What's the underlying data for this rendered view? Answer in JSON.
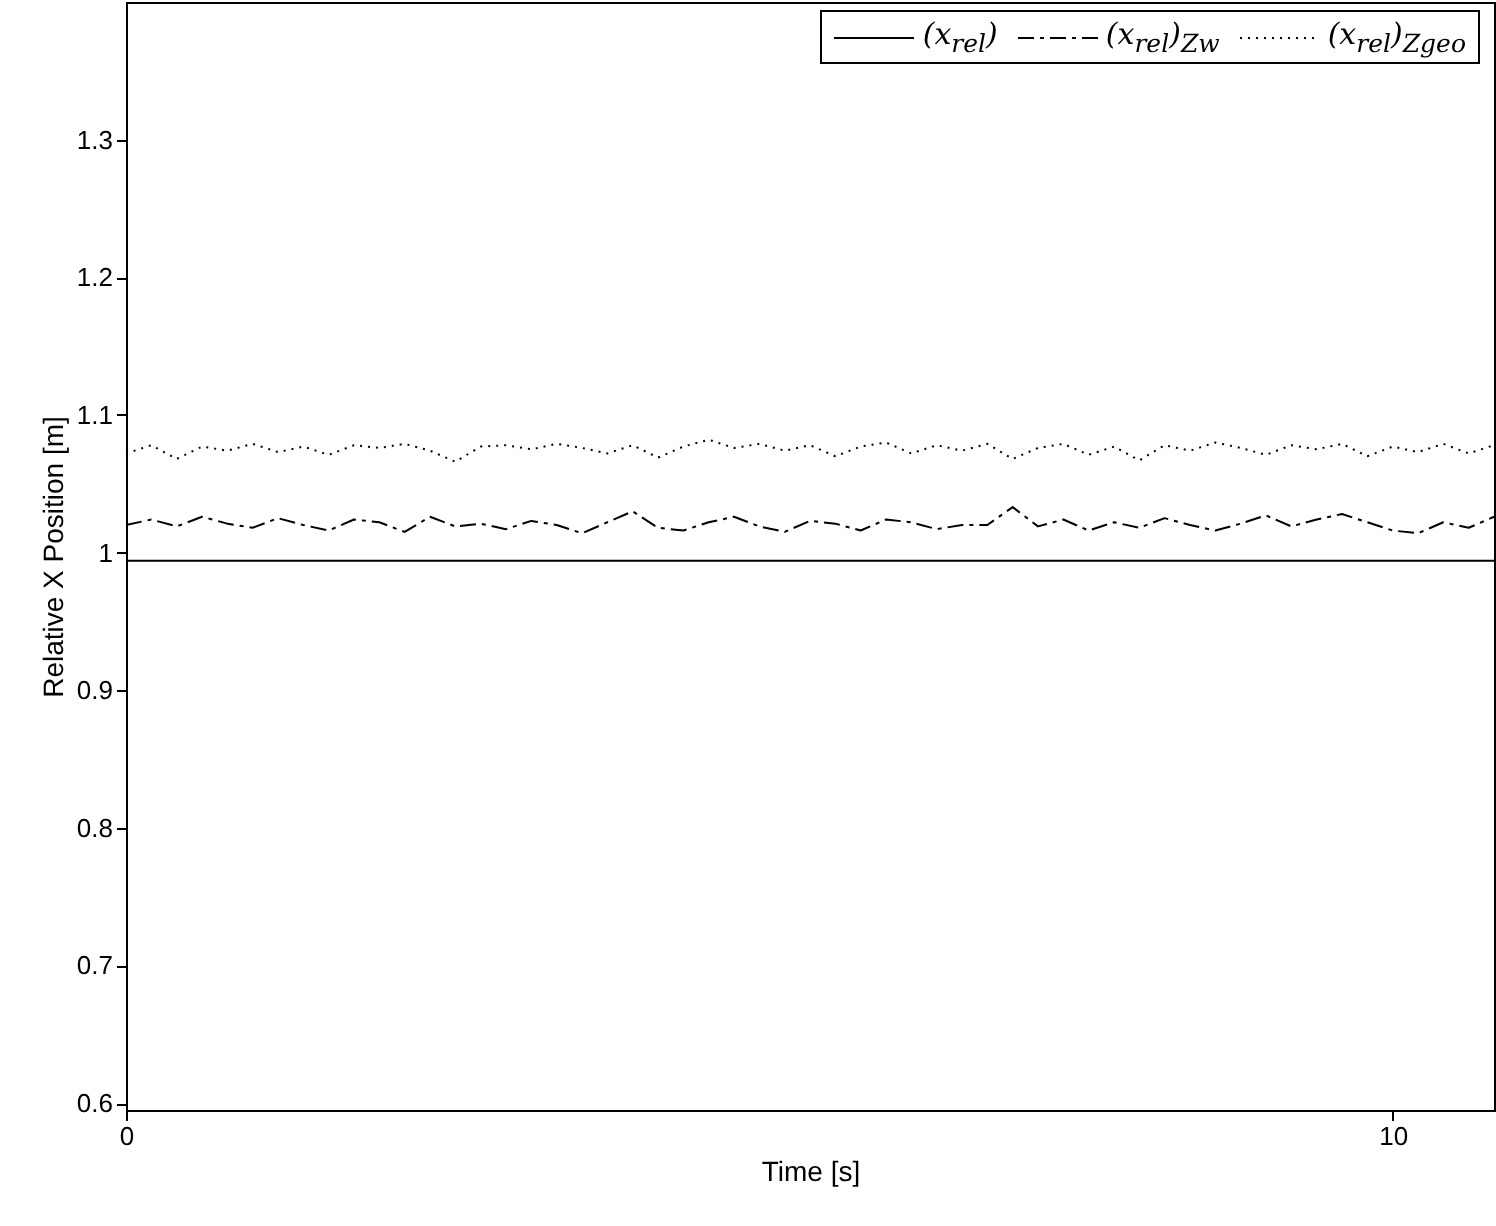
{
  "chart_data": {
    "type": "line",
    "xlabel": "Time [s]",
    "ylabel": "Relative X Position [m]",
    "xlim": [
      0,
      10.8
    ],
    "xticks": [
      0,
      10
    ],
    "ylim": [
      0.595,
      1.4
    ],
    "yticks": [
      0.6,
      0.7,
      0.8,
      0.9,
      1,
      1.1,
      1.2,
      1.3
    ],
    "legend": "top right",
    "x": [
      0,
      0.2,
      0.4,
      0.6,
      0.8,
      1,
      1.2,
      1.4,
      1.6,
      1.8,
      2,
      2.2,
      2.4,
      2.6,
      2.8,
      3,
      3.2,
      3.4,
      3.6,
      3.8,
      4,
      4.2,
      4.4,
      4.6,
      4.8,
      5,
      5.2,
      5.4,
      5.6,
      5.8,
      6,
      6.2,
      6.4,
      6.6,
      6.8,
      7,
      7.2,
      7.4,
      7.6,
      7.8,
      8,
      8.2,
      8.4,
      8.6,
      8.8,
      9,
      9.2,
      9.4,
      9.6,
      9.8,
      10,
      10.2,
      10.4,
      10.6,
      10.8
    ],
    "series": [
      {
        "name": "(x$_{rel}$)",
        "color": "#000000",
        "line_style": "solid",
        "x": [
          0,
          10.8
        ],
        "values": [
          0.994,
          0.994
        ]
      },
      {
        "name": "(x$_{rel}$)$_{Zw}$",
        "color": "#000000",
        "line_style": "dashed",
        "values": [
          1.02,
          1.024,
          1.019,
          1.026,
          1.021,
          1.018,
          1.025,
          1.02,
          1.016,
          1.024,
          1.022,
          1.015,
          1.026,
          1.019,
          1.021,
          1.017,
          1.023,
          1.02,
          1.014,
          1.022,
          1.03,
          1.018,
          1.016,
          1.022,
          1.026,
          1.019,
          1.015,
          1.023,
          1.021,
          1.016,
          1.024,
          1.022,
          1.017,
          1.02,
          1.02,
          1.033,
          1.019,
          1.024,
          1.016,
          1.022,
          1.018,
          1.025,
          1.02,
          1.016,
          1.021,
          1.027,
          1.019,
          1.024,
          1.028,
          1.022,
          1.016,
          1.014,
          1.022,
          1.018,
          1.026
        ]
      },
      {
        "name": "(x$_{rel}$)$_{Zgeo}$",
        "color": "#000000",
        "line_style": "dotted",
        "values": [
          1.072,
          1.078,
          1.068,
          1.077,
          1.074,
          1.079,
          1.073,
          1.077,
          1.071,
          1.078,
          1.076,
          1.079,
          1.074,
          1.066,
          1.077,
          1.078,
          1.075,
          1.079,
          1.076,
          1.072,
          1.078,
          1.069,
          1.077,
          1.082,
          1.076,
          1.079,
          1.074,
          1.078,
          1.07,
          1.077,
          1.08,
          1.072,
          1.078,
          1.074,
          1.079,
          1.068,
          1.076,
          1.079,
          1.071,
          1.077,
          1.067,
          1.078,
          1.074,
          1.08,
          1.076,
          1.071,
          1.078,
          1.075,
          1.079,
          1.07,
          1.077,
          1.073,
          1.079,
          1.072,
          1.078
        ]
      }
    ]
  }
}
